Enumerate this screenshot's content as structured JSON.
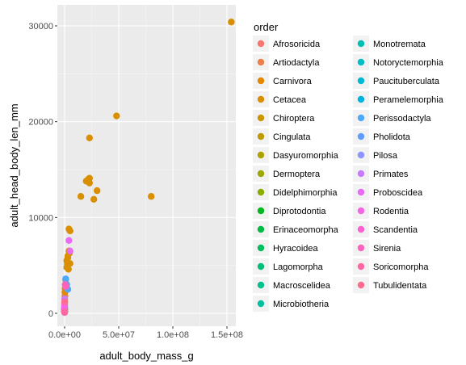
{
  "chart_data": {
    "type": "scatter",
    "xlabel": "adult_body_mass_g",
    "ylabel": "adult_head_body_len_mm",
    "xlim": [
      -2000000,
      157000000
    ],
    "ylim": [
      -1500000,
      31500
    ],
    "x_ticks": [
      0,
      50000000,
      100000000,
      150000000
    ],
    "x_tick_labels": [
      "0.0e+00",
      "5.0e+07",
      "1.0e+08",
      "1.5e+08"
    ],
    "y_ticks": [
      0,
      10000,
      20000,
      30000
    ],
    "y_tick_labels": [
      "0",
      "10000",
      "20000",
      "30000"
    ],
    "grid": true,
    "legend_title": "order",
    "legend_position": "right",
    "series": [
      {
        "name": "Afrosoricida",
        "color": "#F8766D",
        "points": [
          [
            0,
            200
          ],
          [
            0,
            400
          ]
        ]
      },
      {
        "name": "Artiodactyla",
        "color": "#EF7F49",
        "points": [
          [
            200000,
            1200
          ],
          [
            600000,
            2500
          ],
          [
            1000000,
            3000
          ],
          [
            300000,
            1800
          ]
        ]
      },
      {
        "name": "Carnivora",
        "color": "#E58700",
        "points": [
          [
            100000,
            1500
          ],
          [
            300000,
            2200
          ],
          [
            500000,
            2600
          ]
        ]
      },
      {
        "name": "Cetacea",
        "color": "#D98F00",
        "points": [
          [
            1000000,
            3500
          ],
          [
            2000000,
            4800
          ],
          [
            2500000,
            5200
          ],
          [
            3000000,
            5800
          ],
          [
            4000000,
            8800
          ],
          [
            5000000,
            8600
          ],
          [
            3000000,
            6000
          ],
          [
            4000000,
            6500
          ],
          [
            2000000,
            5500
          ],
          [
            5000000,
            5200
          ],
          [
            3500000,
            4600
          ],
          [
            4500000,
            6300
          ],
          [
            15000000,
            12200
          ],
          [
            20000000,
            13800
          ],
          [
            22000000,
            14000
          ],
          [
            23000000,
            14100
          ],
          [
            23000000,
            13600
          ],
          [
            23000000,
            18300
          ],
          [
            27000000,
            11900
          ],
          [
            30000000,
            12800
          ],
          [
            48000000,
            20600
          ],
          [
            80000000,
            12200
          ],
          [
            154000000,
            30400
          ]
        ]
      },
      {
        "name": "Chiroptera",
        "color": "#CC9600",
        "points": [
          [
            0,
            150
          ],
          [
            0,
            300
          ]
        ]
      },
      {
        "name": "Cingulata",
        "color": "#BE9C00",
        "points": [
          [
            0,
            800
          ]
        ]
      },
      {
        "name": "Dasyuromorphia",
        "color": "#AEA200",
        "points": [
          [
            0,
            600
          ]
        ]
      },
      {
        "name": "Dermoptera",
        "color": "#9DA700",
        "points": [
          [
            0,
            400
          ]
        ]
      },
      {
        "name": "Didelphimorphia",
        "color": "#8AAB00",
        "points": [
          [
            0,
            350
          ]
        ]
      },
      {
        "name": "Diprotodontia",
        "color": "#00B81F",
        "points": [
          [
            0,
            900
          ]
        ]
      },
      {
        "name": "Erinaceomorpha",
        "color": "#00BB44",
        "points": [
          [
            0,
            250
          ]
        ]
      },
      {
        "name": "Hyracoidea",
        "color": "#00BD5F",
        "points": [
          [
            0,
            500
          ]
        ]
      },
      {
        "name": "Lagomorpha",
        "color": "#00BF76",
        "points": [
          [
            0,
            450
          ]
        ]
      },
      {
        "name": "Macroscelidea",
        "color": "#00C08B",
        "points": [
          [
            0,
            200
          ]
        ]
      },
      {
        "name": "Microbiotheria",
        "color": "#00C19F",
        "points": [
          [
            0,
            100
          ]
        ]
      },
      {
        "name": "Monotremata",
        "color": "#00C0B2",
        "points": [
          [
            0,
            550
          ]
        ]
      },
      {
        "name": "Notoryctemorphia",
        "color": "#00BEC3",
        "points": [
          [
            0,
            150
          ]
        ]
      },
      {
        "name": "Paucituberculata",
        "color": "#00BAD3",
        "points": [
          [
            0,
            120
          ]
        ]
      },
      {
        "name": "Peramelemorphia",
        "color": "#00B4E2",
        "points": [
          [
            0,
            350
          ]
        ]
      },
      {
        "name": "Perissodactyla",
        "color": "#4FA9F9",
        "points": [
          [
            1000000,
            3600
          ],
          [
            2000000,
            3000
          ],
          [
            3000000,
            2500
          ]
        ]
      },
      {
        "name": "Pholidota",
        "color": "#619CFF",
        "points": [
          [
            0,
            700
          ]
        ]
      },
      {
        "name": "Pilosa",
        "color": "#8C94FF",
        "points": [
          [
            0,
            1100
          ]
        ]
      },
      {
        "name": "Primates",
        "color": "#C77CFF",
        "points": [
          [
            0,
            800
          ],
          [
            0,
            1500
          ]
        ]
      },
      {
        "name": "Proboscidea",
        "color": "#E76BF3",
        "points": [
          [
            4000000,
            7600
          ],
          [
            5000000,
            6500
          ]
        ]
      },
      {
        "name": "Rodentia",
        "color": "#F564E3",
        "points": [
          [
            0,
            100
          ],
          [
            0,
            300
          ],
          [
            0,
            600
          ],
          [
            0,
            1000
          ]
        ]
      },
      {
        "name": "Scandentia",
        "color": "#FD61D1",
        "points": [
          [
            0,
            200
          ]
        ]
      },
      {
        "name": "Sirenia",
        "color": "#FF62BC",
        "points": [
          [
            500000,
            3000
          ],
          [
            1000000,
            2800
          ]
        ]
      },
      {
        "name": "Soricomorpha",
        "color": "#FF67A4",
        "points": [
          [
            0,
            80
          ],
          [
            0,
            150
          ]
        ]
      },
      {
        "name": "Tubulidentata",
        "color": "#FF6C91",
        "points": [
          [
            0,
            1200
          ]
        ]
      }
    ]
  }
}
